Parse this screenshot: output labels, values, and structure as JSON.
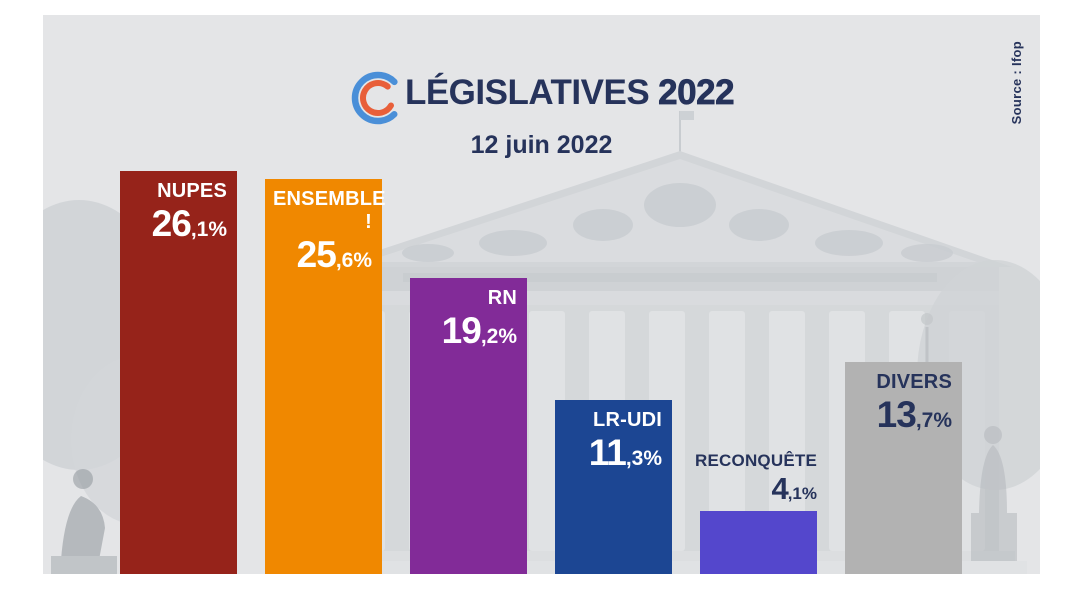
{
  "header": {
    "title_main": "LÉGISLATIVES",
    "title_year": "2022",
    "subtitle": "12 juin 2022",
    "source": "Source : Ifop"
  },
  "logo": {
    "name": "election-rings-logo",
    "blue": "#4a8fd8",
    "red": "#e85f3a"
  },
  "chart_data": {
    "type": "bar",
    "title": "LÉGISLATIVES 2022",
    "subtitle": "12 juin 2022",
    "source": "Ifop",
    "categories": [
      "NUPES",
      "ENSEMBLE !",
      "RN",
      "LR-UDI",
      "RECONQUÊTE",
      "DIVERS"
    ],
    "values": [
      26.1,
      25.6,
      19.2,
      11.3,
      4.1,
      13.7
    ],
    "unit": "%",
    "decimal_separator": ",",
    "bar_colors": [
      "#96231a",
      "#f08800",
      "#822b98",
      "#1c4693",
      "#5447cc",
      "#b2b2b2"
    ],
    "label_colors": [
      "#ffffff",
      "#ffffff",
      "#ffffff",
      "#ffffff",
      "#26335b",
      "#26335b"
    ],
    "label_placement": [
      "inside",
      "inside",
      "inside",
      "inside",
      "above",
      "inside"
    ],
    "xlabel": "",
    "ylabel": "",
    "ylim": [
      0,
      28
    ],
    "grid": false,
    "legend": "none"
  },
  "colors": {
    "text_navy": "#26335b",
    "panel_bg": "#e4e5e7",
    "page_bg": "#ffffff"
  }
}
